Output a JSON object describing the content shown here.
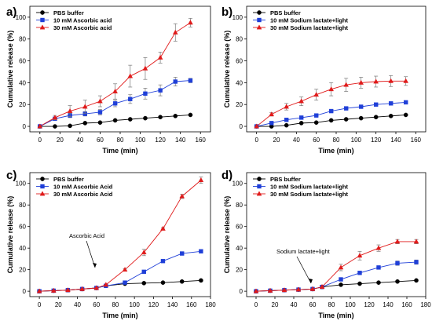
{
  "chart_data": [
    {
      "panel_label": "a)",
      "type": "line",
      "xlabel": "Time (min)",
      "ylabel": "Cumulative release (%)",
      "xlim": [
        -10,
        170
      ],
      "ylim": [
        -5,
        110
      ],
      "xticks": [
        0,
        20,
        40,
        60,
        80,
        100,
        120,
        140,
        160
      ],
      "yticks": [
        0,
        20,
        40,
        60,
        80,
        100
      ],
      "legend_position": "top-left",
      "series": [
        {
          "name": "PBS buffer",
          "marker": "circle",
          "color": "#000000",
          "x": [
            0,
            15,
            30,
            45,
            60,
            75,
            90,
            105,
            120,
            135,
            150
          ],
          "y": [
            0,
            0,
            0.5,
            3,
            3.5,
            5.5,
            6.5,
            7.5,
            8.5,
            9.5,
            10.5
          ],
          "err": [
            0.3,
            0.3,
            0.3,
            0.4,
            0.4,
            0.5,
            0.5,
            0.5,
            0.6,
            0.6,
            0.6
          ]
        },
        {
          "name": "10 mM Ascorbic acid",
          "marker": "square",
          "color": "#1f3fd8",
          "x": [
            0,
            15,
            30,
            45,
            60,
            75,
            90,
            105,
            120,
            135,
            150
          ],
          "y": [
            0,
            7,
            10,
            11.5,
            13,
            21,
            25,
            30,
            33,
            41,
            42
          ],
          "err": [
            0.3,
            1.5,
            2,
            2,
            2.5,
            3,
            4,
            5,
            5,
            4,
            2
          ]
        },
        {
          "name": "30 mM Ascorbic acid",
          "marker": "triangle",
          "color": "#e01a1a",
          "x": [
            0,
            15,
            30,
            45,
            60,
            75,
            90,
            105,
            120,
            135,
            150
          ],
          "y": [
            0,
            8,
            14,
            18,
            23,
            32,
            46,
            53,
            63,
            86,
            95
          ],
          "err": [
            0.3,
            2,
            5,
            6,
            5,
            7,
            10,
            10,
            5,
            8,
            4
          ]
        }
      ]
    },
    {
      "panel_label": "b)",
      "type": "line",
      "xlabel": "Time (min)",
      "ylabel": "Cumulative release (%)",
      "xlim": [
        -10,
        170
      ],
      "ylim": [
        -5,
        110
      ],
      "xticks": [
        0,
        20,
        40,
        60,
        80,
        100,
        120,
        140,
        160
      ],
      "yticks": [
        0,
        20,
        40,
        60,
        80,
        100
      ],
      "legend_position": "top-left",
      "series": [
        {
          "name": "PBS buffer",
          "marker": "circle",
          "color": "#000000",
          "x": [
            0,
            15,
            30,
            45,
            60,
            75,
            90,
            105,
            120,
            135,
            150
          ],
          "y": [
            0,
            0,
            1,
            3,
            3.5,
            5.5,
            6.5,
            7.5,
            8.5,
            9.5,
            10.5
          ],
          "err": [
            0.3,
            0.3,
            0.3,
            0.4,
            0.4,
            0.5,
            0.5,
            0.5,
            0.6,
            0.6,
            0.6
          ]
        },
        {
          "name": "10 mM Sodium lactate+light",
          "marker": "square",
          "color": "#1f3fd8",
          "x": [
            0,
            15,
            30,
            45,
            60,
            75,
            90,
            105,
            120,
            135,
            150
          ],
          "y": [
            0,
            3,
            6,
            8,
            10,
            14,
            16.5,
            18,
            20,
            21,
            22
          ],
          "err": [
            0.3,
            0.5,
            0.7,
            0.8,
            1,
            1,
            1,
            1,
            1,
            1,
            1
          ]
        },
        {
          "name": "30 mM Sodium lactate+light",
          "marker": "triangle",
          "color": "#e01a1a",
          "x": [
            0,
            15,
            30,
            45,
            60,
            75,
            90,
            105,
            120,
            135,
            150
          ],
          "y": [
            0,
            11,
            18,
            23,
            29,
            34,
            38,
            40,
            41,
            41.5,
            41.5
          ],
          "err": [
            0.3,
            1.5,
            3,
            4,
            5,
            6,
            6,
            5,
            5,
            5,
            4
          ]
        }
      ]
    },
    {
      "panel_label": "c)",
      "type": "line",
      "xlabel": "Time (min)",
      "ylabel": "Cumulative release (%)",
      "xlim": [
        -10,
        180
      ],
      "ylim": [
        -5,
        110
      ],
      "xticks": [
        0,
        20,
        40,
        60,
        80,
        100,
        120,
        140,
        160,
        180
      ],
      "yticks": [
        0,
        20,
        40,
        60,
        80,
        100
      ],
      "legend_position": "top-left",
      "annotation": {
        "text": "Ascorbic Acid",
        "x": 60,
        "y": 3
      },
      "series": [
        {
          "name": "PBS buffer",
          "marker": "circle",
          "color": "#000000",
          "x": [
            0,
            15,
            30,
            45,
            60,
            70,
            90,
            110,
            130,
            150,
            170
          ],
          "y": [
            0,
            0.5,
            1,
            2,
            3,
            5,
            7,
            7.5,
            8,
            9,
            10
          ],
          "err": [
            0.3,
            0.3,
            0.3,
            0.4,
            0.4,
            0.5,
            0.5,
            0.6,
            0.6,
            0.6,
            0.6
          ]
        },
        {
          "name": "10 mM Ascorbic Acid",
          "marker": "square",
          "color": "#1f3fd8",
          "x": [
            0,
            15,
            30,
            45,
            60,
            70,
            90,
            110,
            130,
            150,
            170
          ],
          "y": [
            0,
            0.5,
            1,
            2,
            3,
            5,
            8,
            18,
            28,
            35,
            37
          ],
          "err": [
            0.3,
            0.3,
            0.3,
            0.4,
            0.4,
            0.5,
            0.7,
            1,
            1,
            1.5,
            1.5
          ]
        },
        {
          "name": "30 mM Ascorbic Acid",
          "marker": "triangle",
          "color": "#e01a1a",
          "x": [
            0,
            15,
            30,
            45,
            60,
            70,
            90,
            110,
            130,
            150,
            170
          ],
          "y": [
            0,
            0.5,
            1,
            2,
            3,
            6,
            20,
            36,
            58,
            88,
            103
          ],
          "err": [
            0.3,
            0.3,
            0.3,
            0.4,
            0.4,
            0.5,
            1,
            3,
            1,
            2,
            3
          ]
        }
      ]
    },
    {
      "panel_label": "d)",
      "type": "line",
      "xlabel": "Time (min)",
      "ylabel": "Cumulative release (%)",
      "xlim": [
        -10,
        180
      ],
      "ylim": [
        -5,
        110
      ],
      "xticks": [
        0,
        20,
        40,
        60,
        80,
        100,
        120,
        140,
        160,
        180
      ],
      "yticks": [
        0,
        20,
        40,
        60,
        80,
        100
      ],
      "legend_position": "top-left",
      "annotation": {
        "text": "Sodium lactate+light",
        "x": 60,
        "y": 3
      },
      "series": [
        {
          "name": "PBS buffer",
          "marker": "circle",
          "color": "#000000",
          "x": [
            0,
            15,
            30,
            45,
            60,
            70,
            90,
            110,
            130,
            150,
            170
          ],
          "y": [
            0,
            0.5,
            1,
            1.5,
            2,
            4,
            6,
            7,
            8,
            9,
            10
          ],
          "err": [
            0.3,
            0.3,
            0.3,
            0.4,
            0.4,
            0.5,
            0.5,
            0.6,
            0.6,
            0.6,
            0.6
          ]
        },
        {
          "name": "10 mM Sodium lactate+light",
          "marker": "square",
          "color": "#1f3fd8",
          "x": [
            0,
            15,
            30,
            45,
            60,
            70,
            90,
            110,
            130,
            150,
            170
          ],
          "y": [
            0,
            0.5,
            1,
            1.5,
            2,
            4,
            11,
            17,
            22,
            26,
            27
          ],
          "err": [
            0.3,
            0.3,
            0.3,
            0.4,
            0.4,
            0.5,
            1,
            1.5,
            1.5,
            2,
            2
          ]
        },
        {
          "name": "30 mM Sodium lactate+light",
          "marker": "triangle",
          "color": "#e01a1a",
          "x": [
            0,
            15,
            30,
            45,
            60,
            70,
            90,
            110,
            130,
            150,
            170
          ],
          "y": [
            0,
            0.5,
            1,
            1.5,
            2,
            4,
            22,
            33,
            40,
            46,
            46
          ],
          "err": [
            0.3,
            0.3,
            0.3,
            0.4,
            0.4,
            0.5,
            3,
            4,
            3,
            2,
            2
          ]
        }
      ]
    }
  ]
}
